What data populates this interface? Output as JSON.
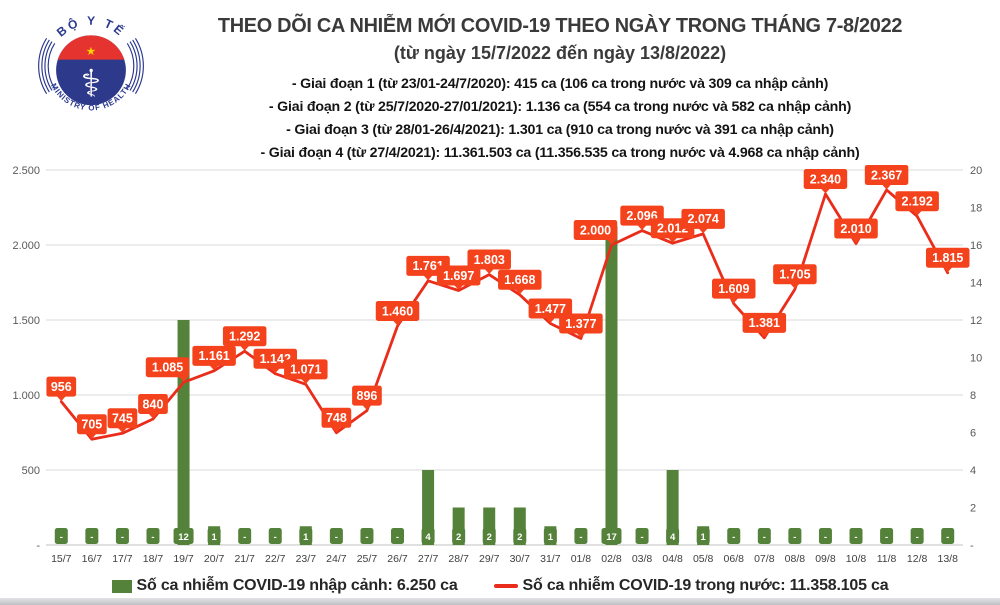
{
  "header": {
    "title": "THEO DÕI CA NHIỄM MỚI COVID-19 THEO NGÀY TRONG THÁNG 7-8/2022",
    "subtitle": "(từ ngày 15/7/2022 đến ngày 13/8/2022)",
    "phases": [
      "- Giai đoạn 1 (từ 23/01-24/7/2020): 415 ca (106 ca trong nước và 309 ca nhập cảnh)",
      "- Giai đoạn 2 (từ 25/7/2020-27/01/2021): 1.136 ca (554 ca trong nước và 582 ca nhập cảnh)",
      "- Giai đoạn 3 (từ 28/01-26/4/2021): 1.301 ca (910 ca trong nước và 391 ca nhập cảnh)",
      "- Giai đoạn 4 (từ 27/4/2021): 11.361.503 ca (11.356.535 ca trong nước và 4.968 ca nhập cảnh)"
    ],
    "logo": {
      "top_text": "BỘ Y TẾ",
      "bottom_text": "MINISTRY OF HEALTH"
    }
  },
  "chart_data": {
    "type": "combo-bar-line",
    "categories": [
      "15/7",
      "16/7",
      "17/7",
      "18/7",
      "19/7",
      "20/7",
      "21/7",
      "22/7",
      "23/7",
      "24/7",
      "25/7",
      "26/7",
      "27/7",
      "28/7",
      "29/7",
      "30/7",
      "31/7",
      "01/8",
      "02/8",
      "03/8",
      "04/8",
      "05/8",
      "06/8",
      "07/8",
      "08/8",
      "09/8",
      "10/8",
      "11/8",
      "12/8",
      "13/8"
    ],
    "series": [
      {
        "name": "Số ca nhiễm COVID-19 nhập cảnh: 6.250 ca",
        "type": "bar",
        "axis": "right",
        "color": "#55823a",
        "values": [
          0,
          0,
          0,
          0,
          12,
          1,
          0,
          0,
          1,
          0,
          0,
          0,
          4,
          2,
          2,
          2,
          1,
          0,
          17,
          0,
          4,
          1,
          0,
          0,
          0,
          0,
          0,
          0,
          0,
          0
        ],
        "labels": [
          "-",
          "-",
          "-",
          "-",
          "12",
          "1",
          "-",
          "-",
          "1",
          "-",
          "-",
          "-",
          "4",
          "2",
          "2",
          "2",
          "1",
          "-",
          "17",
          "-",
          "4",
          "1",
          "-",
          "-",
          "-",
          "-",
          "-",
          "-",
          "-",
          "-"
        ]
      },
      {
        "name": "Số ca nhiễm COVID-19 trong nước: 11.358.105 ca",
        "type": "line",
        "axis": "left",
        "color": "#ea2c1a",
        "label_box_color": "#f4431c",
        "values": [
          956,
          705,
          745,
          840,
          1085,
          1161,
          1292,
          1142,
          1071,
          748,
          896,
          1460,
          1761,
          1697,
          1803,
          1668,
          1477,
          1377,
          2000,
          2096,
          2012,
          2074,
          1609,
          1381,
          1705,
          2340,
          2010,
          2367,
          2192,
          1815
        ],
        "labels": [
          "956",
          "705",
          "745",
          "840",
          "1.085",
          "1.161",
          "1.292",
          "1.142",
          "1.071",
          "748",
          "896",
          "1.460",
          "1.761",
          "1.697",
          "1.803",
          "1.668",
          "1.477",
          "1.377",
          "2.000",
          "2.096",
          "2.012",
          "2.074",
          "1.609",
          "1.381",
          "1.705",
          "2.340",
          "2.010",
          "2.367",
          "2.192",
          "1.815"
        ]
      }
    ],
    "left_axis": {
      "min": 0,
      "max": 2500,
      "tick_step": 500,
      "ticks": [
        "2.500",
        "2.000",
        "1.500",
        "1.000",
        "500",
        "-"
      ]
    },
    "right_axis": {
      "min": 0,
      "max": 20,
      "tick_step": 2,
      "ticks": [
        "20",
        "18",
        "16",
        "14",
        "12",
        "10",
        "8",
        "6",
        "4",
        "2",
        "-"
      ]
    },
    "grid": true,
    "gridline_color": "#d9d9d9",
    "axis_text_color": "#595959",
    "category_text_color": "#404040",
    "legend_position": "bottom"
  }
}
